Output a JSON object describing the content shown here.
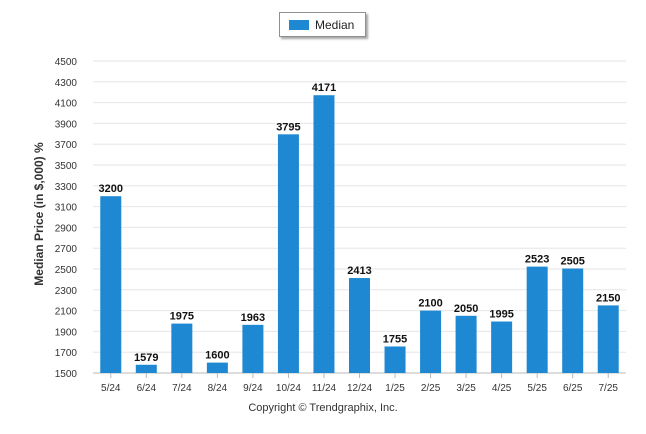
{
  "chart_data": {
    "type": "bar",
    "categories": [
      "5/24",
      "6/24",
      "7/24",
      "8/24",
      "9/24",
      "10/24",
      "11/24",
      "12/24",
      "1/25",
      "2/25",
      "3/25",
      "4/25",
      "5/25",
      "6/25",
      "7/25"
    ],
    "series": [
      {
        "name": "Median",
        "values": [
          3200,
          1579,
          1975,
          1600,
          1963,
          3795,
          4171,
          2413,
          1755,
          2100,
          2050,
          1995,
          2523,
          2505,
          2150
        ]
      }
    ],
    "xlabel": "",
    "ylabel": "Median Price (in $,000) %",
    "ylim": [
      1500,
      4500
    ],
    "yticks": [
      1500,
      1700,
      1900,
      2100,
      2300,
      2500,
      2700,
      2900,
      3100,
      3300,
      3500,
      3700,
      3900,
      4100,
      4300,
      4500
    ],
    "grid": true,
    "legend_position": "top-center",
    "bar_color": "#1e88d2",
    "data_labels": true
  },
  "footer": {
    "copyright": "Copyright © Trendgraphix, Inc."
  }
}
